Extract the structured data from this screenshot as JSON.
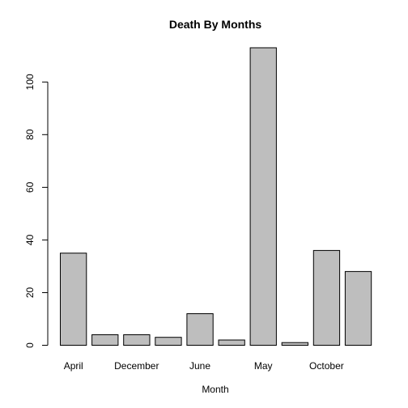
{
  "chart_data": {
    "type": "bar",
    "title": "Death By Months",
    "xlabel": "Month",
    "ylabel": "",
    "categories": [
      "April",
      "",
      "December",
      "",
      "June",
      "",
      "May",
      "",
      "October",
      ""
    ],
    "values": [
      35,
      4,
      4,
      3,
      12,
      2,
      113,
      1,
      36,
      28
    ],
    "ylim": [
      0,
      113
    ],
    "yticks": [
      0,
      20,
      40,
      60,
      80,
      100
    ],
    "colors": {
      "bar_fill": "#bebebe",
      "bar_stroke": "#000000"
    }
  }
}
